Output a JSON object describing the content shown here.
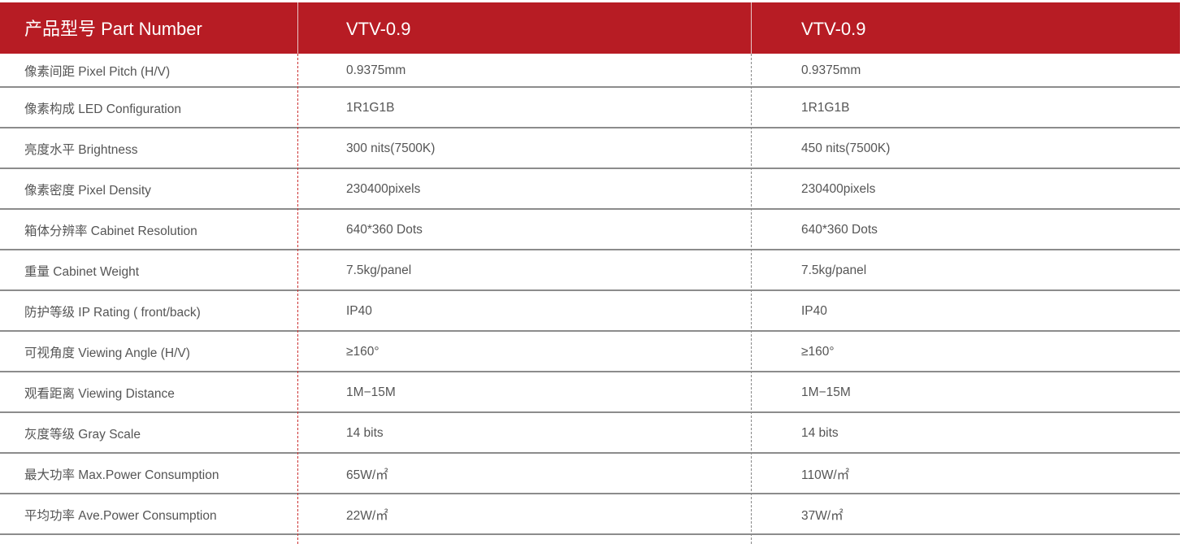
{
  "header": {
    "label": "产品型号 Part Number",
    "models": [
      "VTV-0.9",
      "VTV-0.9"
    ]
  },
  "colors": {
    "header_bg": "#b71c24",
    "text": "#555555"
  },
  "rows": [
    {
      "label": "像素间距 Pixel Pitch (H/V)",
      "values": [
        "0.9375mm",
        "0.9375mm"
      ]
    },
    {
      "label": "像素构成 LED Configuration",
      "values": [
        "1R1G1B",
        "1R1G1B"
      ]
    },
    {
      "label": "亮度水平 Brightness",
      "values": [
        "300 nits(7500K)",
        "450 nits(7500K)"
      ]
    },
    {
      "label": "像素密度 Pixel Density",
      "values": [
        "230400pixels",
        "230400pixels"
      ]
    },
    {
      "label": "箱体分辨率 Cabinet Resolution",
      "values": [
        "640*360 Dots",
        "640*360 Dots"
      ]
    },
    {
      "label": "重量  Cabinet Weight",
      "values": [
        "7.5kg/panel",
        "7.5kg/panel"
      ]
    },
    {
      "label": "防护等级 IP Rating ( front/back)",
      "values": [
        "IP40",
        "IP40"
      ]
    },
    {
      "label": "可视角度 Viewing Angle (H/V)",
      "values": [
        "≥160°",
        "≥160°"
      ]
    },
    {
      "label": "观看距离  Viewing Distance",
      "values": [
        "1M−15M",
        "1M−15M"
      ]
    },
    {
      "label": "灰度等级 Gray Scale",
      "values": [
        "14 bits",
        "14 bits"
      ]
    },
    {
      "label": "最大功率 Max.Power Consumption",
      "values": [
        "65W/㎡",
        "110W/㎡"
      ]
    },
    {
      "label": "平均功率 Ave.Power Consumption",
      "values": [
        "22W/㎡",
        "37W/㎡"
      ]
    }
  ]
}
